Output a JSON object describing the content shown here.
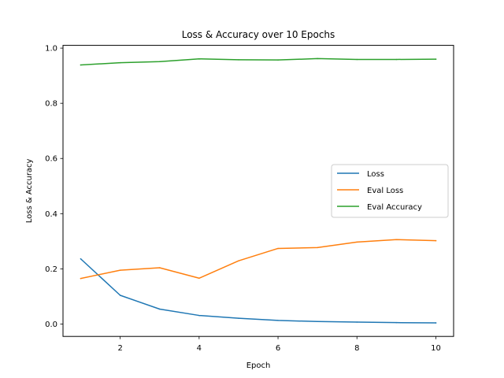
{
  "chart_data": {
    "type": "line",
    "title": "Loss & Accuracy over 10 Epochs",
    "xlabel": "Epoch",
    "ylabel": "Loss & Accuracy",
    "x": [
      1,
      2,
      3,
      4,
      5,
      6,
      7,
      8,
      9,
      10
    ],
    "xlim": [
      0.55,
      10.45
    ],
    "ylim": [
      -0.045,
      1.01
    ],
    "xticks": [
      2,
      4,
      6,
      8,
      10
    ],
    "yticks": [
      0.0,
      0.2,
      0.4,
      0.6,
      0.8,
      1.0
    ],
    "xtick_labels": [
      "2",
      "4",
      "6",
      "8",
      "10"
    ],
    "ytick_labels": [
      "0.0",
      "0.2",
      "0.4",
      "0.6",
      "0.8",
      "1.0"
    ],
    "grid": false,
    "legend_position": "center-right",
    "series": [
      {
        "name": "Loss",
        "color": "#1f77b4",
        "values": [
          0.236,
          0.104,
          0.054,
          0.031,
          0.021,
          0.013,
          0.009,
          0.007,
          0.005,
          0.004
        ]
      },
      {
        "name": "Eval Loss",
        "color": "#ff7f0e",
        "values": [
          0.165,
          0.195,
          0.204,
          0.166,
          0.229,
          0.274,
          0.277,
          0.297,
          0.306,
          0.302
        ]
      },
      {
        "name": "Eval Accuracy",
        "color": "#2ca02c",
        "values": [
          0.939,
          0.947,
          0.951,
          0.961,
          0.958,
          0.957,
          0.962,
          0.959,
          0.959,
          0.96
        ]
      }
    ]
  }
}
